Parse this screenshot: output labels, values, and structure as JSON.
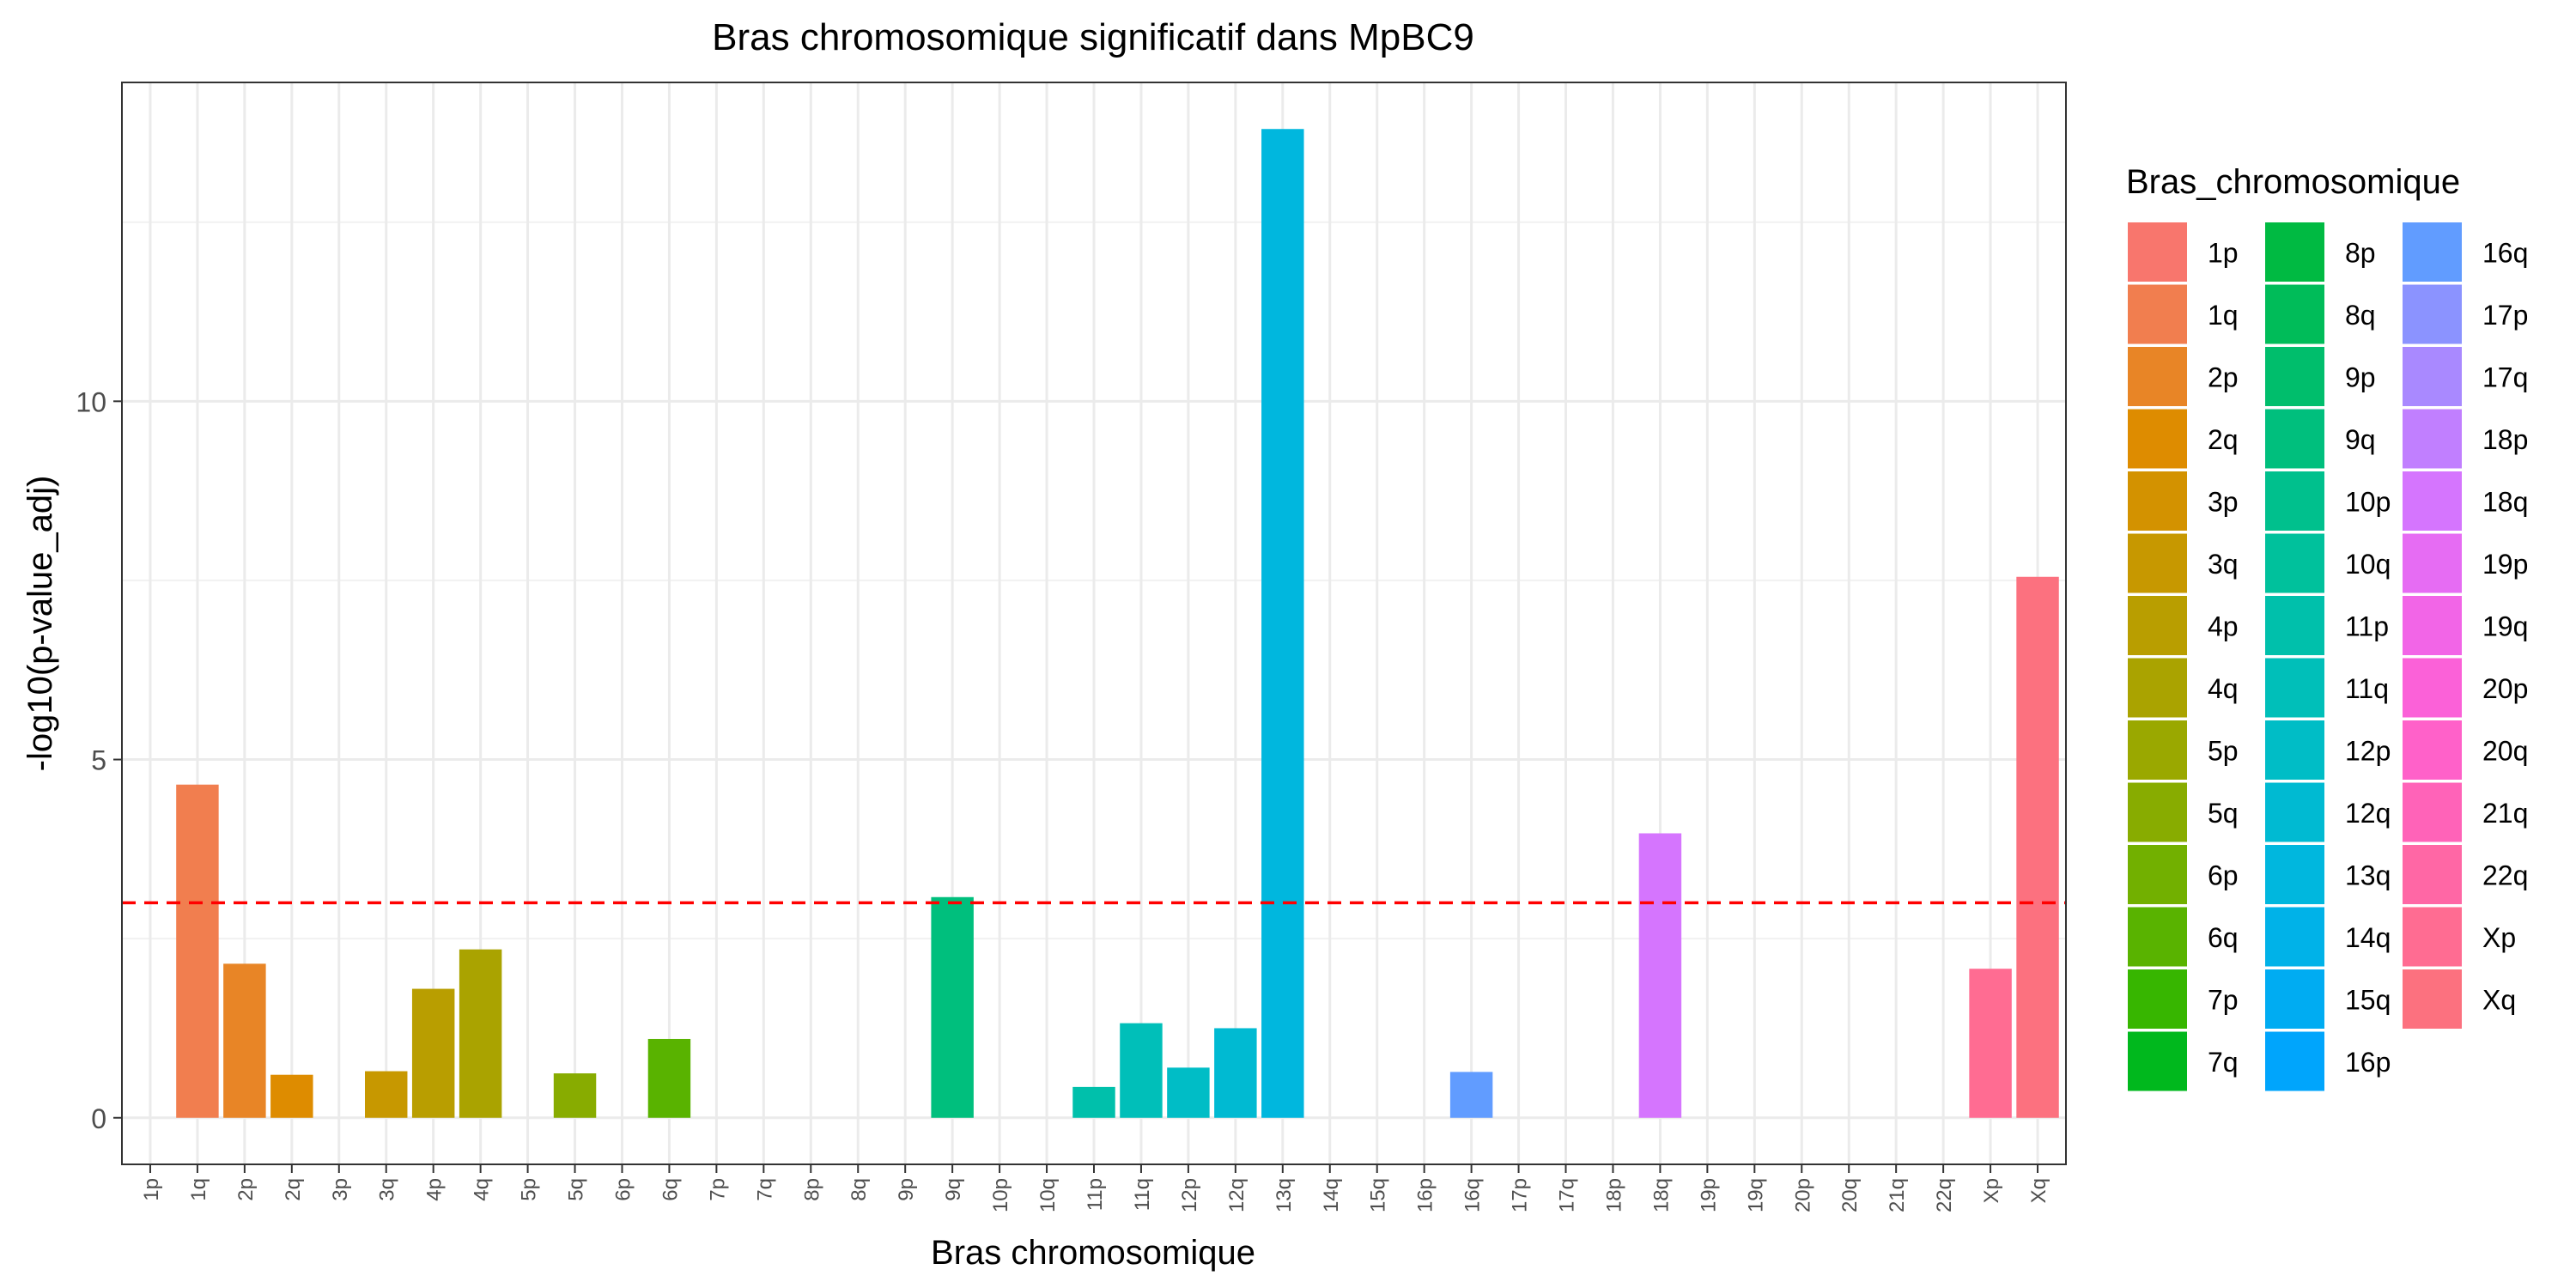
{
  "chart_data": {
    "type": "bar",
    "title": "Bras chromosomique significatif dans MpBC9",
    "xlabel": "Bras chromosomique",
    "ylabel": "-log10(p-value_adj)",
    "legend_title": "Bras_chromosomique",
    "legend_position": "right",
    "grid": true,
    "ylim": [
      -0.65,
      14.45
    ],
    "yticks": [
      0,
      5,
      10
    ],
    "reference_line": {
      "y": 3,
      "color": "#ff0000",
      "style": "dashed"
    },
    "categories": [
      "1p",
      "1q",
      "2p",
      "2q",
      "3p",
      "3q",
      "4p",
      "4q",
      "5p",
      "5q",
      "6p",
      "6q",
      "7p",
      "7q",
      "8p",
      "8q",
      "9p",
      "9q",
      "10p",
      "10q",
      "11p",
      "11q",
      "12p",
      "12q",
      "13q",
      "14q",
      "15q",
      "16p",
      "16q",
      "17p",
      "17q",
      "18p",
      "18q",
      "19p",
      "19q",
      "20p",
      "20q",
      "21q",
      "22q",
      "Xp",
      "Xq"
    ],
    "values": [
      0,
      4.65,
      2.15,
      0.6,
      0,
      0.65,
      1.8,
      2.35,
      0,
      0.62,
      0,
      1.1,
      0,
      0,
      0,
      0,
      0,
      3.08,
      0,
      0,
      0.43,
      1.32,
      0.7,
      1.25,
      13.8,
      0,
      0,
      0,
      0.64,
      0,
      0,
      0,
      3.97,
      0,
      0,
      0,
      0,
      0,
      0,
      2.08,
      7.55
    ],
    "colors": [
      "#F8766D",
      "#F17E4F",
      "#E88526",
      "#DE8C00",
      "#D39200",
      "#C79800",
      "#B99E00",
      "#AAA300",
      "#9AA800",
      "#88AC00",
      "#72B000",
      "#59B300",
      "#37B600",
      "#00B81D",
      "#00BA42",
      "#00BC59",
      "#00BE6C",
      "#00BF7D",
      "#00C08D",
      "#00C19C",
      "#00C0AB",
      "#00BFB9",
      "#00BDC6",
      "#00BAD2",
      "#00B7DE",
      "#00B2E8",
      "#00ACF2",
      "#00A5FC",
      "#619CFF",
      "#8B93FF",
      "#A989FF",
      "#C17FFF",
      "#D575FE",
      "#E66CF3",
      "#F265E7",
      "#FB61D8",
      "#FF61C9",
      "#FF63B8",
      "#FF67A5",
      "#FF6C92",
      "#FC717F"
    ]
  }
}
